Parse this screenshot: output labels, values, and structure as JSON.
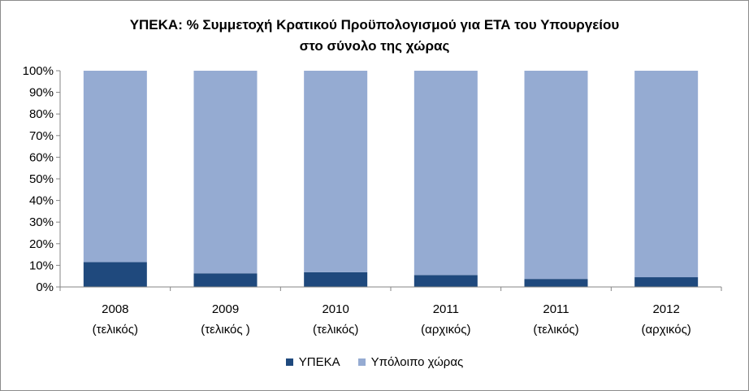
{
  "chart_data": {
    "type": "bar",
    "stacked": true,
    "percent_stacked": true,
    "title_line1": "ΥΠΕΚΑ: % Συμμετοχή Κρατικού Προϋπολογισμού για ΕΤΑ του Υπουργείου",
    "title_line2": "στο σύνολο της χώρας",
    "categories": [
      [
        "2008",
        "(τελικός)"
      ],
      [
        "2009",
        "(τελικός )"
      ],
      [
        "2010",
        "(τελικός)"
      ],
      [
        "2011",
        "(αρχικός)"
      ],
      [
        "2011",
        "(τελικός)"
      ],
      [
        "2012",
        "(αρχικός)"
      ]
    ],
    "series": [
      {
        "name": "ΥΠΕΚΑ",
        "color": "#1f497d",
        "values": [
          11.5,
          6.3,
          6.8,
          5.5,
          3.7,
          4.5
        ]
      },
      {
        "name": "Υπόλοιπο χώρας",
        "color": "#95abd2",
        "values": [
          88.5,
          93.7,
          93.2,
          94.5,
          96.3,
          95.5
        ]
      }
    ],
    "ylim": [
      0,
      100
    ],
    "yticks": [
      "0%",
      "10%",
      "20%",
      "30%",
      "40%",
      "50%",
      "60%",
      "70%",
      "80%",
      "90%",
      "100%"
    ],
    "grid": false,
    "legend_position": "bottom"
  }
}
